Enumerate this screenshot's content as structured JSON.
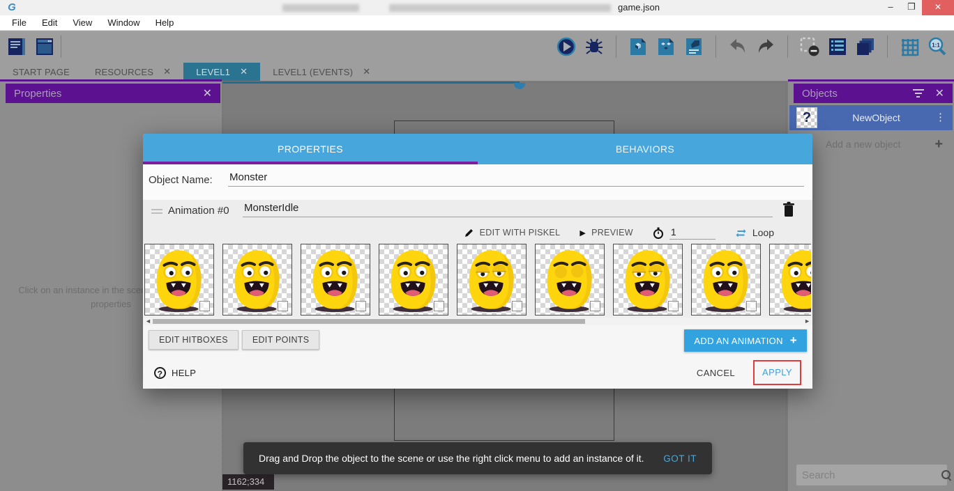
{
  "window": {
    "title_visible": "game.json",
    "logo_glyph": "G"
  },
  "menu_bar": {
    "items": [
      "File",
      "Edit",
      "View",
      "Window",
      "Help"
    ]
  },
  "toolbar": {
    "left_icons": [
      "project-manager-icon",
      "start-page-icon"
    ],
    "right_groups": [
      [
        "preview-play-icon",
        "debug-icon"
      ],
      [
        "objects-editor-icon",
        "object-groups-icon",
        "scene-properties-icon"
      ],
      [
        "undo-icon",
        "redo-icon"
      ],
      [
        "deselect-instances-icon",
        "instances-list-icon",
        "layers-icon"
      ],
      [
        "grid-icon",
        "zoom-original-icon"
      ]
    ]
  },
  "tabs": [
    {
      "label": "START PAGE",
      "closable": false,
      "active": false
    },
    {
      "label": "RESOURCES",
      "closable": true,
      "active": false
    },
    {
      "label": "LEVEL1",
      "closable": true,
      "active": true
    },
    {
      "label": "LEVEL1 (EVENTS)",
      "closable": true,
      "active": false
    }
  ],
  "properties_panel": {
    "title": "Properties",
    "empty_message": "Click on an instance in the scene to display its properties"
  },
  "objects_panel": {
    "title": "Objects",
    "selected_object": "NewObject",
    "add_label": "Add a new object",
    "search_placeholder": "Search"
  },
  "dialog": {
    "tabs": [
      {
        "label": "PROPERTIES",
        "active": true
      },
      {
        "label": "BEHAVIORS",
        "active": false
      }
    ],
    "object_name_label": "Object Name:",
    "object_name_value": "Monster",
    "animation": {
      "label": "Animation #0",
      "name": "MonsterIdle"
    },
    "controls": {
      "edit_with_piskel": "EDIT WITH PISKEL",
      "preview": "PREVIEW",
      "time_between_frames": "1",
      "loop": "Loop"
    },
    "frames": [
      {
        "eyes": "open"
      },
      {
        "eyes": "open"
      },
      {
        "eyes": "open"
      },
      {
        "eyes": "open"
      },
      {
        "eyes": "half"
      },
      {
        "eyes": "closed"
      },
      {
        "eyes": "half"
      },
      {
        "eyes": "open"
      },
      {
        "eyes": "open"
      }
    ],
    "buttons": {
      "edit_hitboxes": "EDIT HITBOXES",
      "edit_points": "EDIT POINTS",
      "add_animation": "ADD AN ANIMATION",
      "help": "HELP",
      "cancel": "CANCEL",
      "apply": "APPLY"
    }
  },
  "snackbar": {
    "message": "Drag and Drop the object to the scene or use the right click menu to add an instance of it.",
    "action": "GOT IT"
  },
  "status": {
    "coordinates": "1162;334"
  },
  "icons": {
    "close": "✕",
    "minimize": "–",
    "restore": "❐",
    "plus": "+",
    "dots": "⋮",
    "left_arrow": "◄",
    "right_arrow": "►",
    "play_small": "▶",
    "question": "?"
  },
  "colors": {
    "accent_purple": "#5b1190",
    "dialog_header_blue": "#47a7dd",
    "button_blue": "#33a3e0",
    "link_blue": "#3ba0dc",
    "annotation_red": "#e23b3b",
    "tab_active_teal": "#2a7391",
    "object_row_blue": "#4868b0",
    "monster_yellow": "#ffd60e"
  }
}
